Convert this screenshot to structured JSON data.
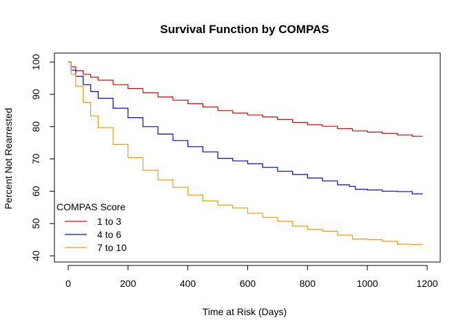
{
  "chart_data": {
    "type": "line",
    "step": true,
    "title": "Survival Function by COMPAS",
    "xlabel": "Time at Risk (Days)",
    "ylabel": "Percent Not Rearrested",
    "xlim": [
      0,
      1200
    ],
    "ylim": [
      40,
      100
    ],
    "x_ticks": [
      0,
      200,
      400,
      600,
      800,
      1000,
      1200
    ],
    "y_ticks": [
      40,
      50,
      60,
      70,
      80,
      90,
      100
    ],
    "grid": false,
    "legend": {
      "title": "COMPAS Score",
      "position": "bottom-left"
    },
    "series": [
      {
        "name": "1 to 3",
        "color": "#e00000",
        "x": [
          0,
          10,
          25,
          50,
          75,
          100,
          150,
          200,
          250,
          300,
          350,
          400,
          450,
          500,
          550,
          600,
          650,
          700,
          750,
          800,
          850,
          900,
          950,
          1000,
          1050,
          1100,
          1150,
          1185
        ],
        "y": [
          100,
          98.5,
          97.3,
          96.2,
          95.3,
          94.4,
          93.0,
          91.8,
          90.5,
          89.2,
          88.2,
          87.1,
          86.1,
          85.0,
          84.2,
          83.6,
          83.0,
          82.2,
          81.3,
          80.6,
          80.1,
          79.4,
          78.7,
          78.3,
          77.9,
          77.4,
          77.0,
          77.0
        ]
      },
      {
        "name": "4 to 6",
        "color": "#0000ff",
        "x": [
          0,
          10,
          25,
          50,
          75,
          100,
          150,
          200,
          250,
          300,
          350,
          400,
          450,
          500,
          550,
          600,
          650,
          700,
          750,
          800,
          850,
          900,
          940,
          960,
          1000,
          1050,
          1100,
          1130,
          1150,
          1185
        ],
        "y": [
          100,
          97.5,
          95.6,
          93.0,
          90.9,
          88.8,
          85.7,
          82.8,
          80.0,
          77.7,
          75.7,
          73.8,
          72.2,
          70.2,
          69.4,
          68.5,
          67.4,
          66.2,
          65.2,
          64.1,
          63.2,
          62.0,
          61.5,
          60.6,
          60.4,
          60.0,
          59.9,
          59.9,
          59.2,
          59.2
        ]
      },
      {
        "name": "7 to 10",
        "color": "#ff9900",
        "x": [
          0,
          10,
          25,
          50,
          75,
          100,
          150,
          200,
          250,
          300,
          350,
          400,
          450,
          500,
          550,
          600,
          650,
          700,
          750,
          800,
          850,
          900,
          950,
          1000,
          1050,
          1100,
          1150,
          1185
        ],
        "y": [
          100,
          96.2,
          92.5,
          87.5,
          83.3,
          79.7,
          74.5,
          70.4,
          66.5,
          63.5,
          61.2,
          58.8,
          57.0,
          55.7,
          54.8,
          53.2,
          51.9,
          50.7,
          49.2,
          48.2,
          47.6,
          46.4,
          45.2,
          45.0,
          44.5,
          43.6,
          43.5,
          43.5
        ]
      }
    ]
  }
}
